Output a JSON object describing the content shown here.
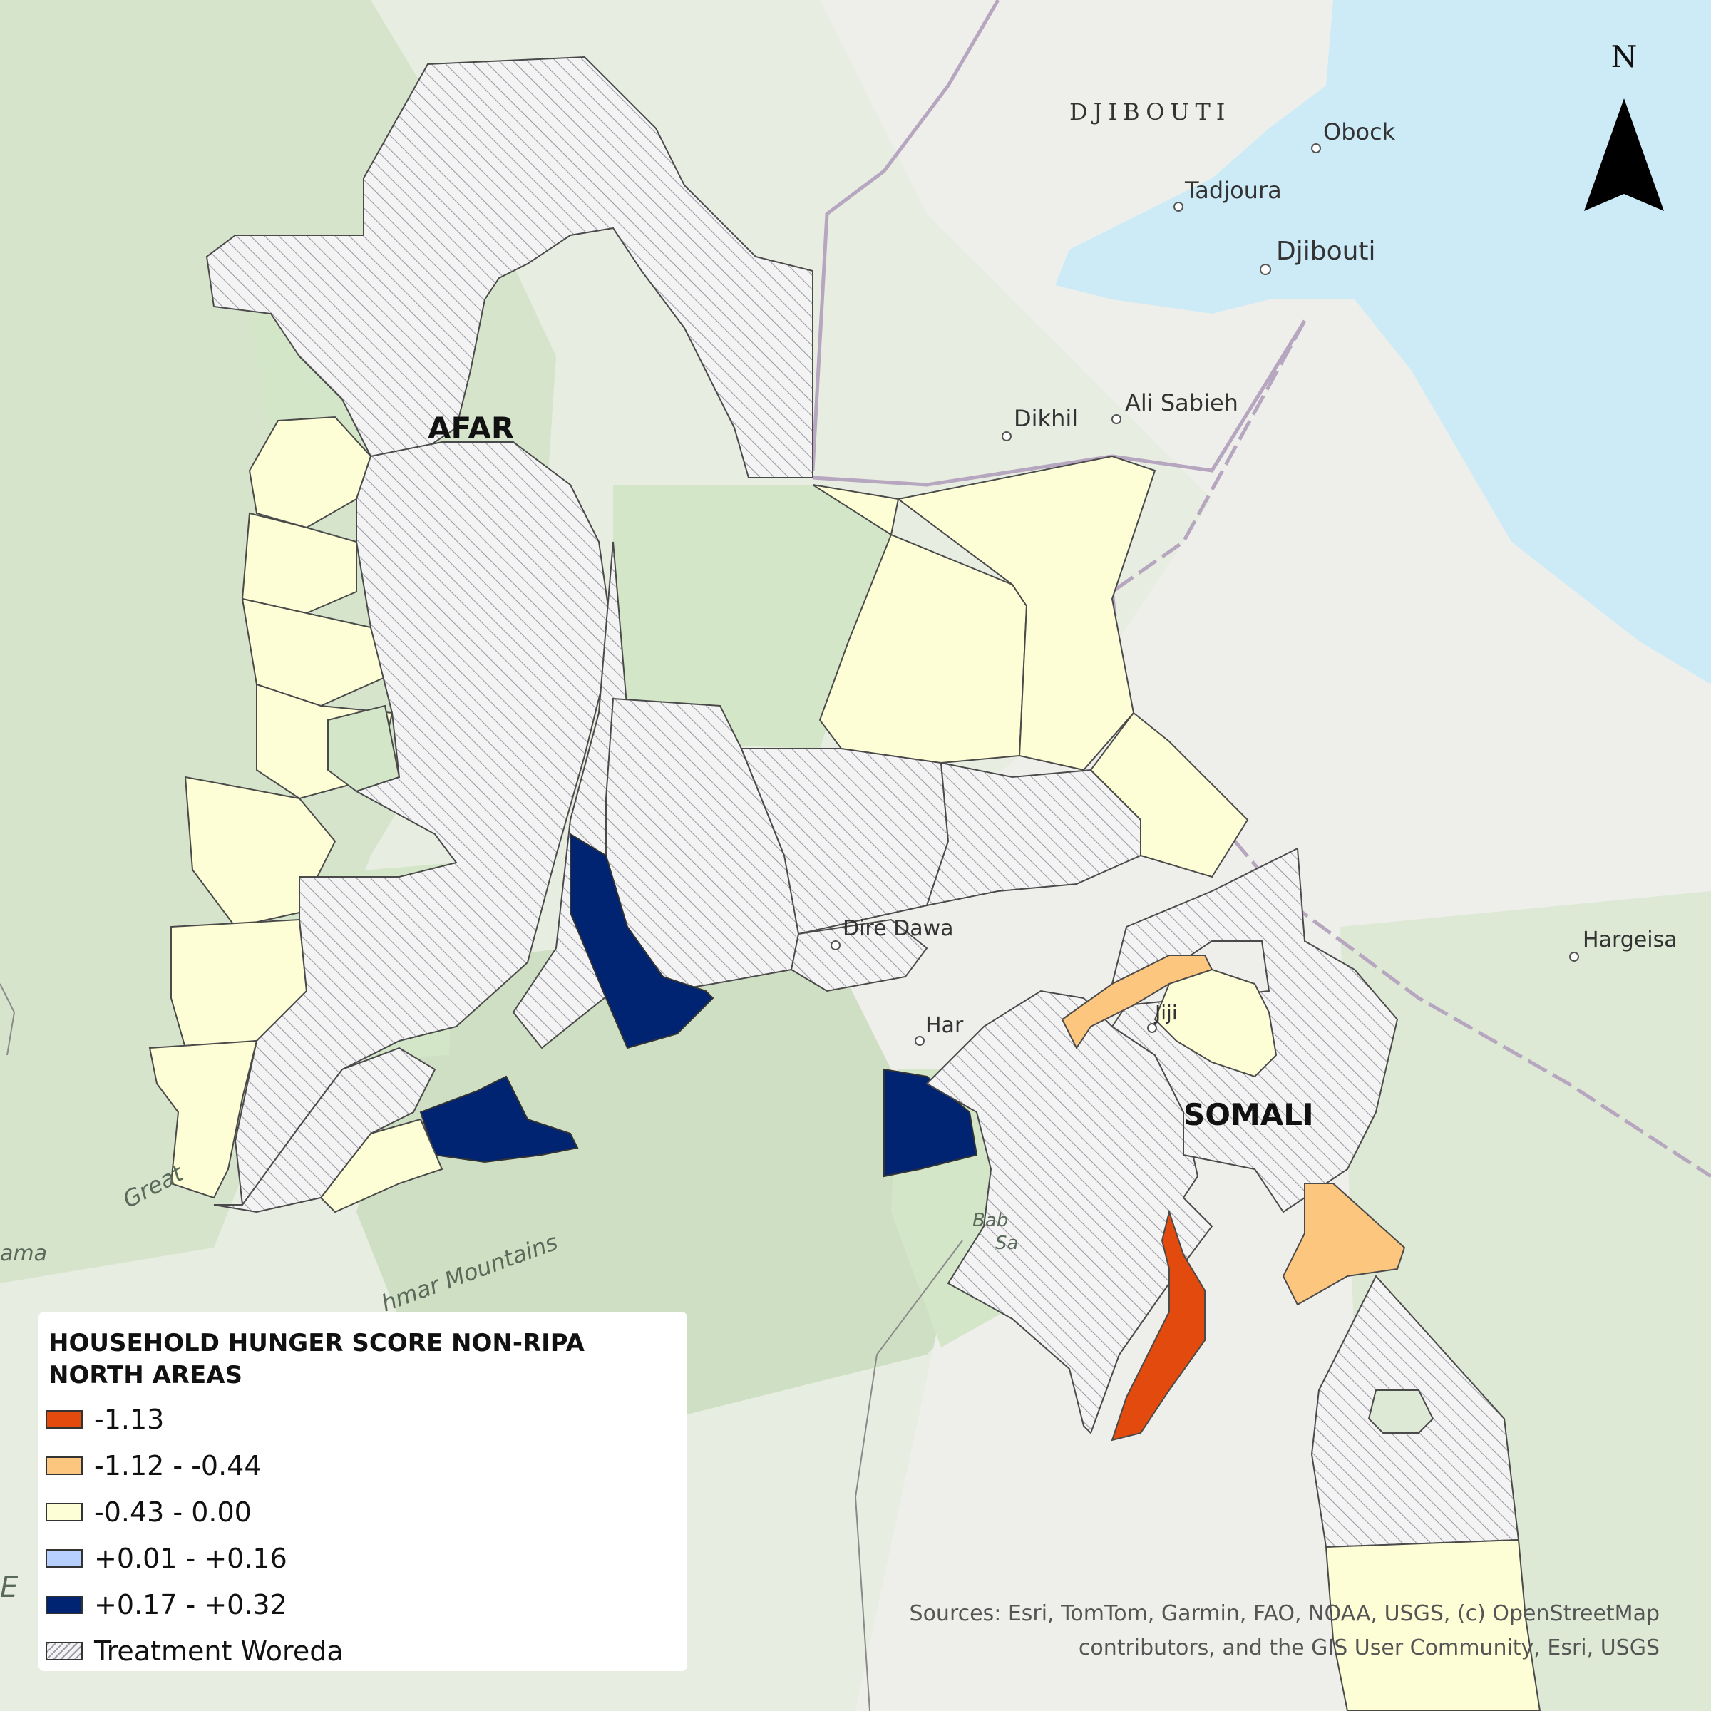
{
  "map": {
    "country_label": "DJIBOUTI",
    "region_labels": [
      "AFAR",
      "SOMALI"
    ],
    "cities": [
      {
        "name": "Obock"
      },
      {
        "name": "Tadjoura"
      },
      {
        "name": "Djibouti"
      },
      {
        "name": "Dikhil"
      },
      {
        "name": "Ali Sabieh"
      },
      {
        "name": "Dire Dawa"
      },
      {
        "name": "Hargeisa"
      },
      {
        "name": "Har"
      },
      {
        "name": "Jiji"
      }
    ],
    "feature_labels": [
      "Great",
      "hmar Mountains",
      "ama",
      "Bab",
      "Sa",
      "E"
    ],
    "north_label": "N",
    "colors": {
      "water": "#cdebf7",
      "land": "#eef0e9",
      "green": "#d8e8cf",
      "c_minus_1_13": "#e34a0e",
      "c_minus_1_12_to_0_44": "#fdc67f",
      "c_minus_0_43_to_0_00": "#fefed6",
      "c_plus_0_01_to_0_16": "#b6cfff",
      "c_plus_0_17_to_0_32": "#002471",
      "treatment_hatch": "#a9a9b1"
    }
  },
  "legend": {
    "title_line1": "HOUSEHOLD HUNGER SCORE NON-RIPA",
    "title_line2": "NORTH AREAS",
    "items": [
      {
        "label": "-1.13",
        "color": "#e34a0e"
      },
      {
        "label": "-1.12 - -0.44",
        "color": "#fdc67f"
      },
      {
        "label": "-0.43 - 0.00",
        "color": "#fefed6"
      },
      {
        "label": "+0.01 - +0.16",
        "color": "#b6cfff"
      },
      {
        "label": "+0.17 - +0.32",
        "color": "#002471"
      },
      {
        "label": "Treatment Woreda",
        "color": "hatch"
      }
    ]
  },
  "sources": {
    "line1": "Sources:  Esri, TomTom, Garmin, FAO, NOAA, USGS, (c) OpenStreetMap",
    "line2": "contributors, and the GIS User Community, Esri, USGS"
  }
}
